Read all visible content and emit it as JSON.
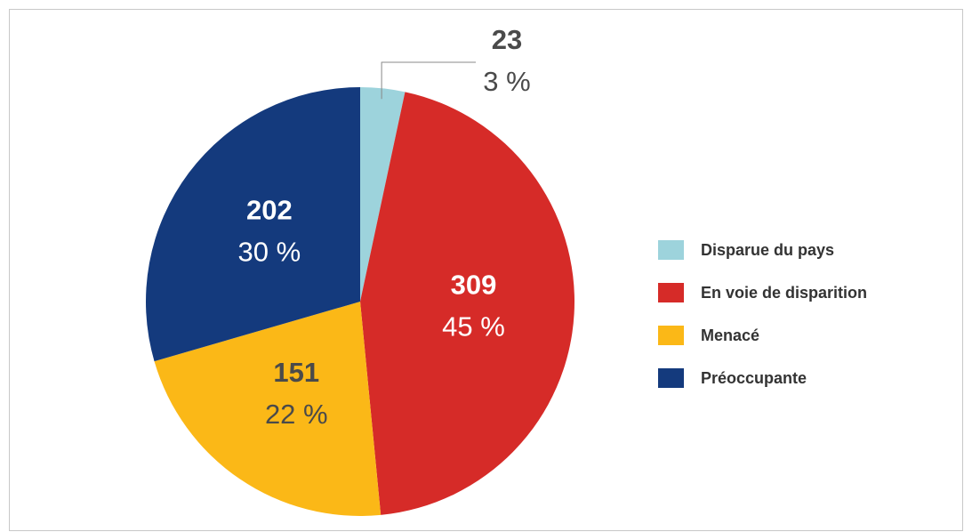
{
  "chart_data": {
    "type": "pie",
    "categories": [
      "Disparue du pays",
      "En voie de disparition",
      "Menacé",
      "Préoccupante"
    ],
    "values": [
      23,
      309,
      151,
      202
    ],
    "percents": [
      3,
      45,
      22,
      30
    ],
    "percent_labels": [
      "3 %",
      "45 %",
      "22 %",
      "30 %"
    ],
    "colors": [
      "#9dd3dc",
      "#d62b28",
      "#fbb817",
      "#143a7d"
    ],
    "label_colors": [
      "#4a4a4a",
      "#ffffff",
      "#4a4a4a",
      "#ffffff"
    ],
    "legend": "right"
  }
}
